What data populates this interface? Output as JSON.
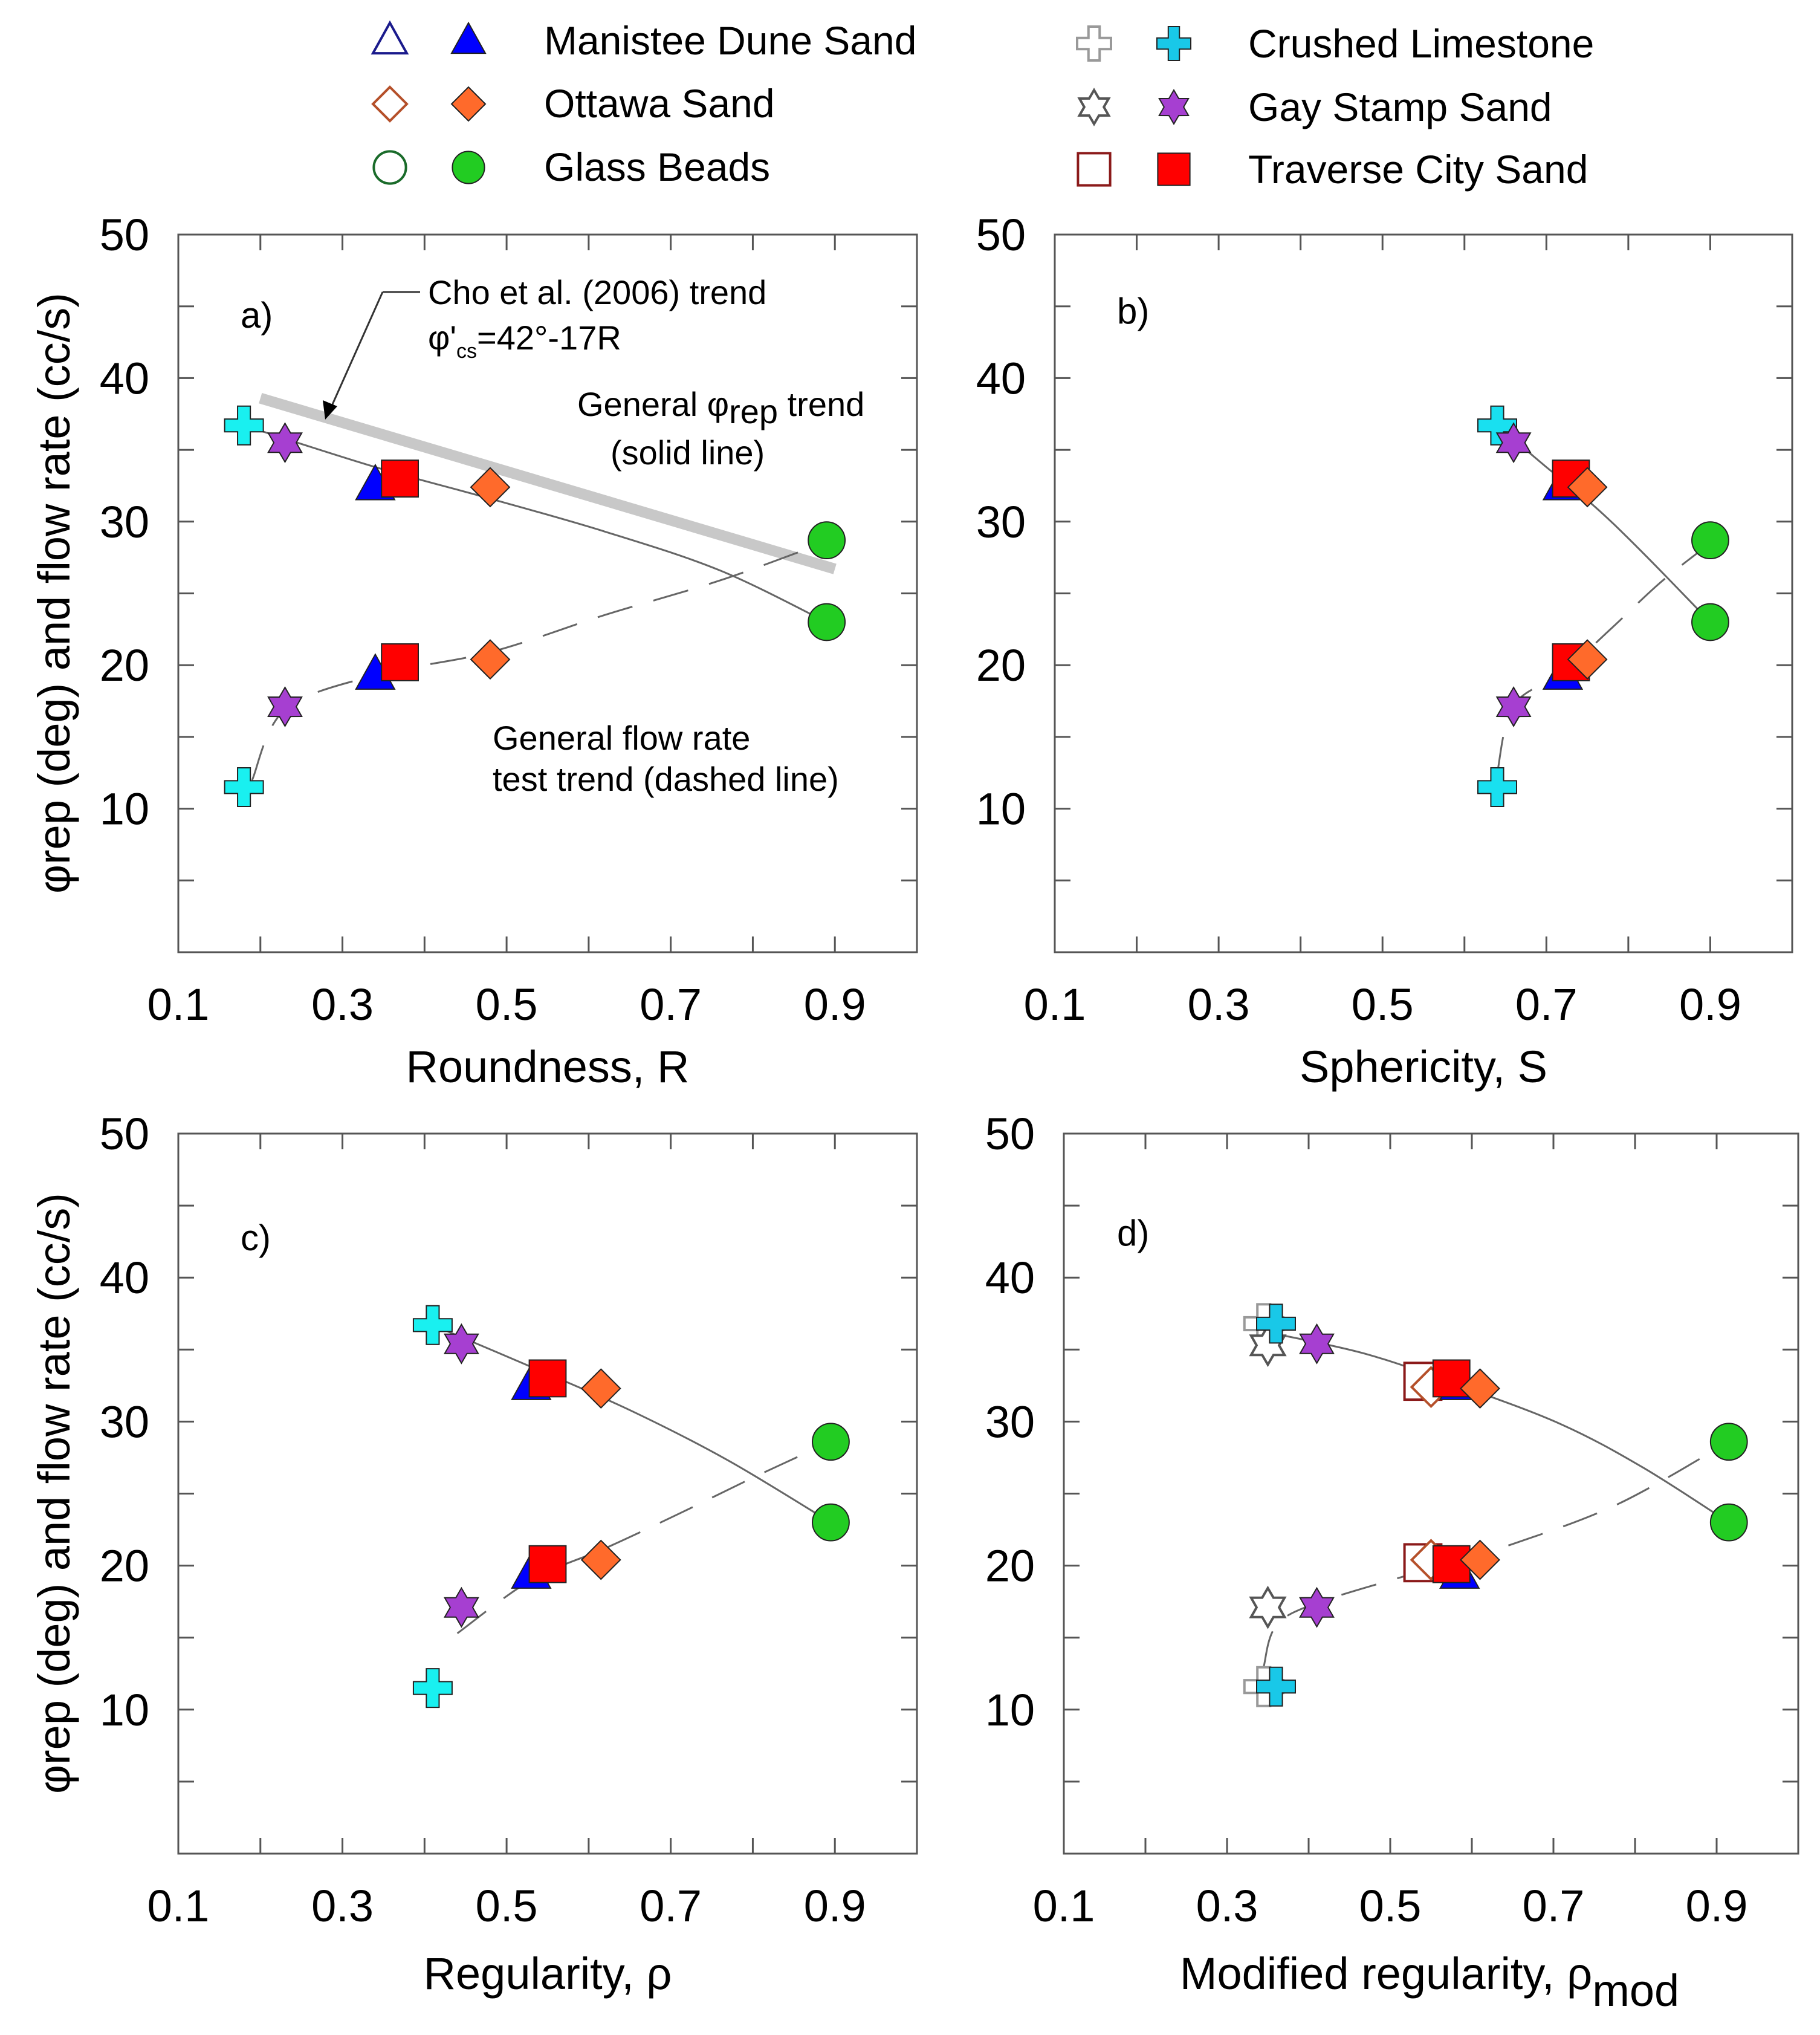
{
  "chart_data": {
    "type": "scatter",
    "legend": {
      "placement": "top",
      "entries": [
        {
          "key": "manistee",
          "label": "Manistee Dune Sand",
          "shape": "triangle",
          "color": "#0000ff",
          "open_color": "#1a1a8c"
        },
        {
          "key": "ottawa",
          "label": "Ottawa Sand",
          "shape": "diamond",
          "color": "#ff6a2b",
          "open_color": "#b5502a"
        },
        {
          "key": "glass",
          "label": "Glass Beads",
          "shape": "circle",
          "color": "#22cc22",
          "open_color": "#1a6b2a"
        },
        {
          "key": "limestone",
          "label": "Crushed Limestone",
          "shape": "cross",
          "color": "#19c8e8",
          "open_color": "#999999"
        },
        {
          "key": "gay",
          "label": "Gay Stamp Sand",
          "shape": "star",
          "color": "#a63fd1",
          "open_color": "#555555"
        },
        {
          "key": "traverse",
          "label": "Traverse City Sand",
          "shape": "square",
          "color": "#ff0000",
          "open_color": "#8b1a1a"
        }
      ]
    },
    "shared": {
      "ylabel": "φrep (deg) and flow rate (cc/s)",
      "xlim": [
        0.1,
        1.0
      ],
      "ylim": [
        0,
        50
      ],
      "xticks": [
        "0.1",
        "0.3",
        "0.5",
        "0.7",
        "0.9"
      ],
      "yticks": [
        "10",
        "20",
        "30",
        "40",
        "50"
      ]
    },
    "panels": [
      {
        "id": "a",
        "label": "a)",
        "xlabel": "Roundness, R",
        "xlabel_sub": "",
        "colors": {
          "limestone": "#19f0f0"
        },
        "points": [
          {
            "s": "limestone",
            "x": 0.18,
            "y": 36.7,
            "fill": "solid"
          },
          {
            "s": "gay",
            "x": 0.23,
            "y": 35.5,
            "fill": "solid"
          },
          {
            "s": "manistee",
            "x": 0.34,
            "y": 32.5,
            "fill": "solid"
          },
          {
            "s": "traverse",
            "x": 0.37,
            "y": 33.0,
            "fill": "solid"
          },
          {
            "s": "ottawa",
            "x": 0.48,
            "y": 32.4,
            "fill": "solid"
          },
          {
            "s": "glass",
            "x": 0.89,
            "y": 28.7,
            "fill": "solid"
          },
          {
            "s": "glass",
            "x": 0.89,
            "y": 23.0,
            "fill": "solid"
          },
          {
            "s": "limestone",
            "x": 0.18,
            "y": 11.5,
            "fill": "solid"
          },
          {
            "s": "gay",
            "x": 0.23,
            "y": 17.1,
            "fill": "solid"
          },
          {
            "s": "manistee",
            "x": 0.34,
            "y": 19.3,
            "fill": "solid"
          },
          {
            "s": "traverse",
            "x": 0.37,
            "y": 20.2,
            "fill": "solid"
          },
          {
            "s": "ottawa",
            "x": 0.48,
            "y": 20.4,
            "fill": "solid"
          }
        ],
        "solid_trend": [
          [
            0.18,
            36.7
          ],
          [
            0.34,
            33.8
          ],
          [
            0.48,
            31.6
          ],
          [
            0.62,
            29.3
          ],
          [
            0.76,
            26.6
          ],
          [
            0.89,
            23.0
          ]
        ],
        "dashed_trend": [
          [
            0.19,
            12.0
          ],
          [
            0.23,
            16.9
          ],
          [
            0.34,
            19.3
          ],
          [
            0.48,
            20.9
          ],
          [
            0.62,
            23.5
          ],
          [
            0.76,
            25.9
          ],
          [
            0.89,
            28.6
          ]
        ],
        "cho_trend": [
          [
            0.2,
            38.6
          ],
          [
            0.9,
            26.7
          ]
        ],
        "annotations": {
          "cho_line1": "Cho et al. (2006) trend",
          "cho_eq": "φ'",
          "cho_eq_sub": "cs",
          "cho_eq_rest": "=42°-17R",
          "phi_trend_a": "General φ",
          "phi_trend_sub": "rep",
          "phi_trend_b": " trend",
          "phi_trend_line2": "(solid line)",
          "flow_trend_line1": "General flow rate",
          "flow_trend_line2": "test trend (dashed line)"
        }
      },
      {
        "id": "b",
        "label": "b)",
        "xlabel": "Sphericity, S",
        "xlabel_sub": "",
        "colors": {
          "limestone": "#19e0f0"
        },
        "points": [
          {
            "s": "limestone",
            "x": 0.64,
            "y": 36.7,
            "fill": "solid"
          },
          {
            "s": "gay",
            "x": 0.66,
            "y": 35.5,
            "fill": "solid"
          },
          {
            "s": "manistee",
            "x": 0.72,
            "y": 32.5,
            "fill": "solid"
          },
          {
            "s": "traverse",
            "x": 0.73,
            "y": 33.0,
            "fill": "solid"
          },
          {
            "s": "ottawa",
            "x": 0.75,
            "y": 32.4,
            "fill": "solid"
          },
          {
            "s": "glass",
            "x": 0.9,
            "y": 28.7,
            "fill": "solid"
          },
          {
            "s": "glass",
            "x": 0.9,
            "y": 23.0,
            "fill": "solid"
          },
          {
            "s": "limestone",
            "x": 0.64,
            "y": 11.5,
            "fill": "solid"
          },
          {
            "s": "gay",
            "x": 0.66,
            "y": 17.1,
            "fill": "solid"
          },
          {
            "s": "manistee",
            "x": 0.72,
            "y": 19.3,
            "fill": "solid"
          },
          {
            "s": "traverse",
            "x": 0.73,
            "y": 20.2,
            "fill": "solid"
          },
          {
            "s": "ottawa",
            "x": 0.75,
            "y": 20.4,
            "fill": "solid"
          }
        ],
        "solid_trend": [
          [
            0.64,
            36.7
          ],
          [
            0.7,
            33.8
          ],
          [
            0.76,
            31.0
          ],
          [
            0.82,
            27.7
          ],
          [
            0.9,
            23.0
          ]
        ],
        "dashed_trend": [
          [
            0.64,
            12.5
          ],
          [
            0.66,
            17.2
          ],
          [
            0.72,
            19.5
          ],
          [
            0.78,
            22.6
          ],
          [
            0.84,
            25.8
          ],
          [
            0.9,
            28.5
          ]
        ],
        "cho_trend": [],
        "annotations": {}
      },
      {
        "id": "c",
        "label": "c)",
        "xlabel": "Regularity, ρ",
        "xlabel_sub": "",
        "colors": {
          "limestone": "#19f0f0"
        },
        "points": [
          {
            "s": "limestone",
            "x": 0.41,
            "y": 36.7,
            "fill": "solid"
          },
          {
            "s": "gay",
            "x": 0.445,
            "y": 35.4,
            "fill": "solid"
          },
          {
            "s": "manistee",
            "x": 0.53,
            "y": 32.5,
            "fill": "solid"
          },
          {
            "s": "traverse",
            "x": 0.55,
            "y": 33.0,
            "fill": "solid"
          },
          {
            "s": "ottawa",
            "x": 0.615,
            "y": 32.3,
            "fill": "solid"
          },
          {
            "s": "glass",
            "x": 0.895,
            "y": 28.6,
            "fill": "solid"
          },
          {
            "s": "glass",
            "x": 0.895,
            "y": 23.0,
            "fill": "solid"
          },
          {
            "s": "limestone",
            "x": 0.41,
            "y": 11.5,
            "fill": "solid"
          },
          {
            "s": "gay",
            "x": 0.445,
            "y": 17.1,
            "fill": "solid"
          },
          {
            "s": "manistee",
            "x": 0.53,
            "y": 19.4,
            "fill": "solid"
          },
          {
            "s": "traverse",
            "x": 0.55,
            "y": 20.1,
            "fill": "solid"
          },
          {
            "s": "ottawa",
            "x": 0.615,
            "y": 20.4,
            "fill": "solid"
          }
        ],
        "solid_trend": [
          [
            0.41,
            36.7
          ],
          [
            0.53,
            33.8
          ],
          [
            0.65,
            30.8
          ],
          [
            0.77,
            27.3
          ],
          [
            0.895,
            23.0
          ]
        ],
        "dashed_trend": [
          [
            0.44,
            15.3
          ],
          [
            0.53,
            19.0
          ],
          [
            0.62,
            21.2
          ],
          [
            0.71,
            23.6
          ],
          [
            0.8,
            26.1
          ],
          [
            0.895,
            28.6
          ]
        ],
        "cho_trend": [],
        "annotations": {}
      },
      {
        "id": "d",
        "label": "d)",
        "xlabel": "Modified regularity, ρ",
        "xlabel_sub": "mod",
        "colors": {
          "limestone": "#19c8e8"
        },
        "points": [
          {
            "s": "limestone",
            "x": 0.345,
            "y": 36.8,
            "fill": "open"
          },
          {
            "s": "gay",
            "x": 0.35,
            "y": 35.3,
            "fill": "open"
          },
          {
            "s": "traverse",
            "x": 0.54,
            "y": 32.8,
            "fill": "open"
          },
          {
            "s": "ottawa",
            "x": 0.55,
            "y": 32.4,
            "fill": "open"
          },
          {
            "s": "limestone",
            "x": 0.36,
            "y": 36.8,
            "fill": "solid"
          },
          {
            "s": "gay",
            "x": 0.41,
            "y": 35.4,
            "fill": "solid"
          },
          {
            "s": "manistee",
            "x": 0.585,
            "y": 32.5,
            "fill": "solid"
          },
          {
            "s": "traverse",
            "x": 0.575,
            "y": 33.0,
            "fill": "solid"
          },
          {
            "s": "ottawa",
            "x": 0.61,
            "y": 32.3,
            "fill": "solid"
          },
          {
            "s": "glass",
            "x": 0.915,
            "y": 28.6,
            "fill": "solid"
          },
          {
            "s": "glass",
            "x": 0.915,
            "y": 23.0,
            "fill": "solid"
          },
          {
            "s": "limestone",
            "x": 0.345,
            "y": 11.6,
            "fill": "open"
          },
          {
            "s": "gay",
            "x": 0.35,
            "y": 17.1,
            "fill": "open"
          },
          {
            "s": "traverse",
            "x": 0.54,
            "y": 20.2,
            "fill": "open"
          },
          {
            "s": "ottawa",
            "x": 0.55,
            "y": 20.4,
            "fill": "open"
          },
          {
            "s": "limestone",
            "x": 0.36,
            "y": 11.6,
            "fill": "solid"
          },
          {
            "s": "gay",
            "x": 0.41,
            "y": 17.1,
            "fill": "solid"
          },
          {
            "s": "manistee",
            "x": 0.585,
            "y": 19.4,
            "fill": "solid"
          },
          {
            "s": "traverse",
            "x": 0.575,
            "y": 20.1,
            "fill": "solid"
          },
          {
            "s": "ottawa",
            "x": 0.61,
            "y": 20.4,
            "fill": "solid"
          }
        ],
        "solid_trend": [
          [
            0.35,
            36.2
          ],
          [
            0.47,
            34.7
          ],
          [
            0.59,
            32.4
          ],
          [
            0.71,
            29.8
          ],
          [
            0.81,
            26.8
          ],
          [
            0.915,
            23.0
          ]
        ],
        "dashed_trend": [
          [
            0.345,
            13.0
          ],
          [
            0.36,
            15.8
          ],
          [
            0.41,
            17.4
          ],
          [
            0.55,
            19.8
          ],
          [
            0.65,
            21.5
          ],
          [
            0.78,
            24.3
          ],
          [
            0.915,
            28.6
          ]
        ],
        "cho_trend": [],
        "annotations": {}
      }
    ]
  }
}
